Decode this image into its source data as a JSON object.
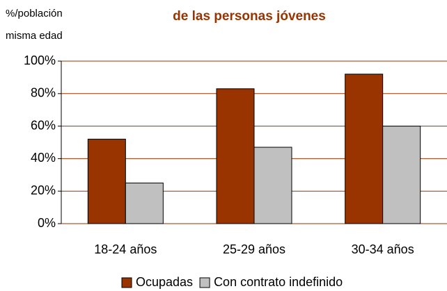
{
  "chart_data": {
    "type": "bar",
    "title": "de las personas jóvenes",
    "y_label": [
      "%/población",
      "misma edad"
    ],
    "categories": [
      "18-24 años",
      "25-29 años",
      "30-34 años"
    ],
    "series": [
      {
        "name": "Ocupadas",
        "color": "#993300",
        "values": [
          52,
          83,
          92
        ]
      },
      {
        "name": "Con contrato indefinido",
        "color": "#c0c0c0",
        "values": [
          25,
          47,
          60
        ]
      }
    ],
    "ylim": [
      0,
      100
    ],
    "yticks": [
      {
        "value": 0,
        "label": "0%"
      },
      {
        "value": 20,
        "label": "20%"
      },
      {
        "value": 40,
        "label": "40%"
      },
      {
        "value": 60,
        "label": "60%"
      },
      {
        "value": 80,
        "label": "80%"
      },
      {
        "value": 100,
        "label": "100%"
      }
    ],
    "grid": true,
    "grid_color": "#993300",
    "title_color": "#993300",
    "legend": "bottom"
  }
}
